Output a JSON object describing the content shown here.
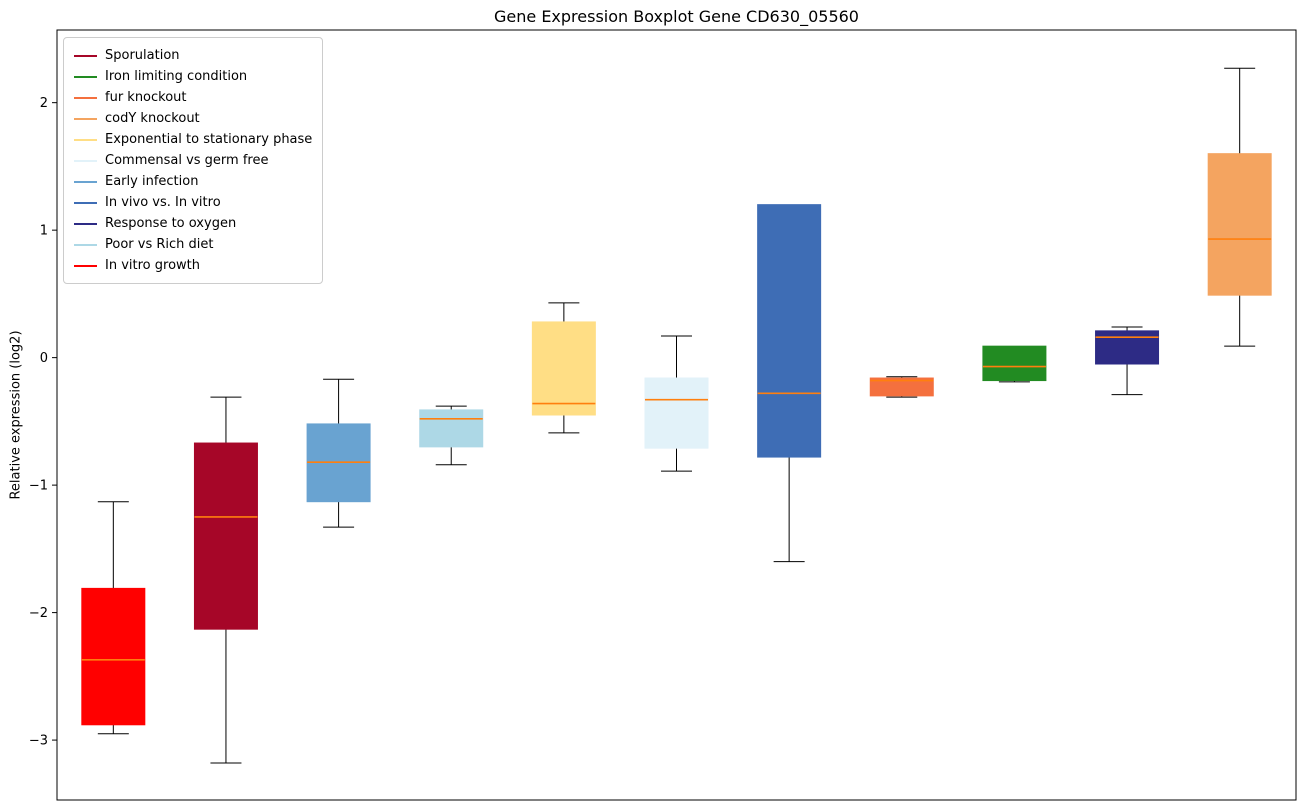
{
  "page": {
    "background": "#ffffff"
  },
  "chart_data": {
    "type": "boxplot",
    "title": "Gene Expression Boxplot Gene CD630_05560",
    "ylabel": "Relative expression (log2)",
    "xlabel": "",
    "ylim": [
      -3.47,
      2.57
    ],
    "yticks": [
      2,
      1,
      0,
      -1,
      -2,
      -3
    ],
    "grid": false,
    "legend_position": "upper-left",
    "median_color": "#ff7f0e",
    "whisker_color": "#000000",
    "axis_color": "#000000",
    "legend": [
      {
        "label": "Sporulation",
        "color": "#a60628"
      },
      {
        "label": "Iron limiting condition",
        "color": "#228b22"
      },
      {
        "label": "fur knockout",
        "color": "#f4703e"
      },
      {
        "label": "codY knockout",
        "color": "#f4a460"
      },
      {
        "label": "Exponential to stationary phase",
        "color": "#ffde85"
      },
      {
        "label": "Commensal vs germ free",
        "color": "#e2f2f9"
      },
      {
        "label": "Early infection",
        "color": "#69a3d1"
      },
      {
        "label": "In vivo vs. In vitro",
        "color": "#3e6db5"
      },
      {
        "label": "Response to oxygen",
        "color": "#2d2b85"
      },
      {
        "label": "Poor vs Rich diet",
        "color": "#add8e6"
      },
      {
        "label": "In vitro growth",
        "color": "#ff0000"
      }
    ],
    "series": [
      {
        "condition": "In vitro growth",
        "color": "#ff0000",
        "whisker_low": -2.95,
        "q1": -2.88,
        "median": -2.37,
        "q3": -1.81,
        "whisker_high": -1.13
      },
      {
        "condition": "Sporulation",
        "color": "#a60628",
        "whisker_low": -3.18,
        "q1": -2.13,
        "median": -1.25,
        "q3": -0.67,
        "whisker_high": -0.31
      },
      {
        "condition": "Early infection",
        "color": "#69a3d1",
        "whisker_low": -1.33,
        "q1": -1.13,
        "median": -0.82,
        "q3": -0.52,
        "whisker_high": -0.17
      },
      {
        "condition": "Poor vs Rich diet",
        "color": "#add8e6",
        "whisker_low": -0.84,
        "q1": -0.7,
        "median": -0.48,
        "q3": -0.41,
        "whisker_high": -0.38
      },
      {
        "condition": "Exponential to stationary phase",
        "color": "#ffde85",
        "whisker_low": -0.59,
        "q1": -0.45,
        "median": -0.36,
        "q3": 0.28,
        "whisker_high": 0.43
      },
      {
        "condition": "Commensal vs germ free",
        "color": "#e2f2f9",
        "whisker_low": -0.89,
        "q1": -0.71,
        "median": -0.33,
        "q3": -0.16,
        "whisker_high": 0.17
      },
      {
        "condition": "In vivo vs. In vitro",
        "color": "#3e6db5",
        "whisker_low": -1.6,
        "q1": -0.78,
        "median": -0.28,
        "q3": 1.2,
        "whisker_high": 1.2
      },
      {
        "condition": "fur knockout",
        "color": "#f4703e",
        "whisker_low": -0.31,
        "q1": -0.3,
        "median": -0.18,
        "q3": -0.16,
        "whisker_high": -0.15
      },
      {
        "condition": "Iron limiting condition",
        "color": "#228b22",
        "whisker_low": -0.19,
        "q1": -0.18,
        "median": -0.07,
        "q3": 0.09,
        "whisker_high": 0.09
      },
      {
        "condition": "Response to oxygen",
        "color": "#2d2b85",
        "whisker_low": -0.29,
        "q1": -0.05,
        "median": 0.16,
        "q3": 0.21,
        "whisker_high": 0.24
      },
      {
        "condition": "codY knockout",
        "color": "#f4a460",
        "whisker_low": 0.09,
        "q1": 0.49,
        "median": 0.93,
        "q3": 1.6,
        "whisker_high": 2.27
      }
    ]
  }
}
